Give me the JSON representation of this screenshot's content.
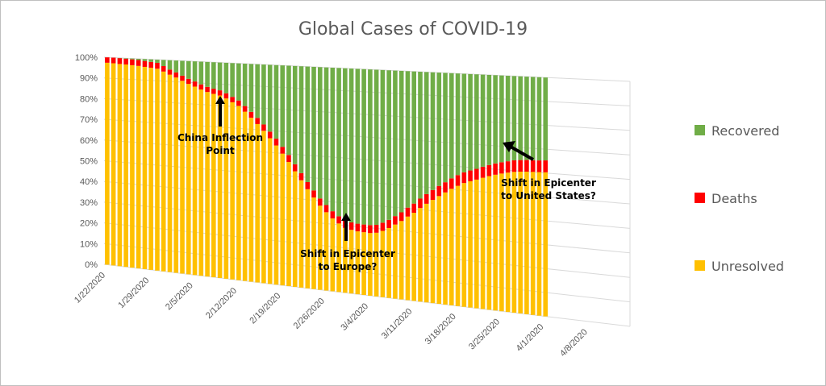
{
  "chart_data": {
    "type": "bar",
    "stacked": true,
    "stacked_100_percent": true,
    "title": "Global Cases of COVID-19",
    "y_ticks": [
      "0%",
      "10%",
      "20%",
      "30%",
      "40%",
      "50%",
      "60%",
      "70%",
      "80%",
      "90%",
      "100%"
    ],
    "ylim": [
      0,
      100
    ],
    "x_tick_labels": [
      "1/22/2020",
      "1/29/2020",
      "2/5/2020",
      "2/12/2020",
      "2/19/2020",
      "2/26/2020",
      "3/4/2020",
      "3/11/2020",
      "3/18/2020",
      "3/25/2020",
      "4/1/2020",
      "4/8/2020"
    ],
    "xlim": [
      "1/22/2020",
      "4/14/2020"
    ],
    "gridlines": true,
    "legend_position": "right",
    "days": 71,
    "series": [
      {
        "name": "Unresolved",
        "color": "#FFC000",
        "values": [
          97.4,
          97.3,
          97.1,
          97.0,
          96.8,
          96.6,
          96.3,
          96.0,
          95.7,
          94.5,
          93.2,
          92.0,
          90.6,
          89.3,
          88.2,
          87.0,
          86.0,
          85.3,
          84.7,
          83.5,
          81.9,
          80.4,
          77.9,
          75.3,
          72.6,
          69.7,
          66.5,
          63.4,
          59.9,
          56.3,
          52.3,
          48.5,
          44.7,
          41.2,
          37.8,
          35.1,
          32.6,
          30.6,
          28.9,
          28.3,
          27.9,
          27.8,
          27.7,
          28.1,
          29.2,
          30.7,
          32.5,
          34.3,
          36.5,
          38.4,
          40.7,
          42.8,
          44.7,
          46.6,
          48.4,
          50.2,
          51.7,
          53.1,
          54.1,
          55.0,
          56.0,
          56.9,
          57.7,
          58.4,
          59.0,
          59.5,
          59.8,
          60.0,
          60.1,
          60.2,
          60.3
        ]
      },
      {
        "name": "Deaths",
        "color": "#FF0000",
        "values": [
          2.6,
          2.7,
          2.8,
          2.8,
          2.8,
          2.8,
          2.8,
          2.8,
          2.8,
          2.6,
          2.4,
          2.4,
          2.4,
          2.4,
          2.4,
          2.4,
          2.4,
          2.4,
          2.4,
          2.4,
          2.5,
          2.5,
          2.6,
          2.7,
          2.8,
          2.9,
          3.0,
          3.1,
          3.1,
          3.2,
          3.2,
          3.2,
          3.2,
          3.2,
          3.2,
          3.2,
          3.2,
          3.2,
          3.3,
          3.3,
          3.4,
          3.4,
          3.5,
          3.5,
          3.6,
          3.6,
          3.7,
          3.8,
          3.9,
          4.0,
          4.1,
          4.2,
          4.3,
          4.4,
          4.4,
          4.5,
          4.6,
          4.6,
          4.6,
          4.6,
          4.7,
          4.7,
          4.8,
          4.8,
          4.8,
          4.9,
          4.9,
          4.9,
          4.9,
          4.9,
          5.0
        ]
      },
      {
        "name": "Recovered",
        "color": "#70AD47",
        "values": [
          0.0,
          0.0,
          0.1,
          0.2,
          0.4,
          0.6,
          0.9,
          1.2,
          1.5,
          2.9,
          4.4,
          5.6,
          7.0,
          8.3,
          9.4,
          10.6,
          11.6,
          12.3,
          12.9,
          14.1,
          15.6,
          17.1,
          19.5,
          22.0,
          24.6,
          27.4,
          30.5,
          33.5,
          37.0,
          40.5,
          44.5,
          48.3,
          52.1,
          55.6,
          59.0,
          61.7,
          64.2,
          66.2,
          67.8,
          68.4,
          68.7,
          68.8,
          68.8,
          68.4,
          67.2,
          65.7,
          63.8,
          61.9,
          59.6,
          57.6,
          55.2,
          53.0,
          51.0,
          49.0,
          47.2,
          45.3,
          43.7,
          42.3,
          41.3,
          40.4,
          39.3,
          38.4,
          37.5,
          36.8,
          36.2,
          35.6,
          35.3,
          35.1,
          35.0,
          34.9,
          34.7
        ]
      }
    ],
    "legend_order": [
      "Recovered",
      "Deaths",
      "Unresolved"
    ],
    "annotations": [
      {
        "lines": [
          "China Inflection",
          "Point"
        ],
        "date": "2/12/2020",
        "arrow": "up"
      },
      {
        "lines": [
          "Shift in Epicenter",
          "to Europe?"
        ],
        "date": "3/7/2020",
        "arrow": "up"
      },
      {
        "lines": [
          "Shift in Epicenter",
          "to United States?"
        ],
        "date": "3/31/2020",
        "arrow": "up-left"
      }
    ]
  }
}
